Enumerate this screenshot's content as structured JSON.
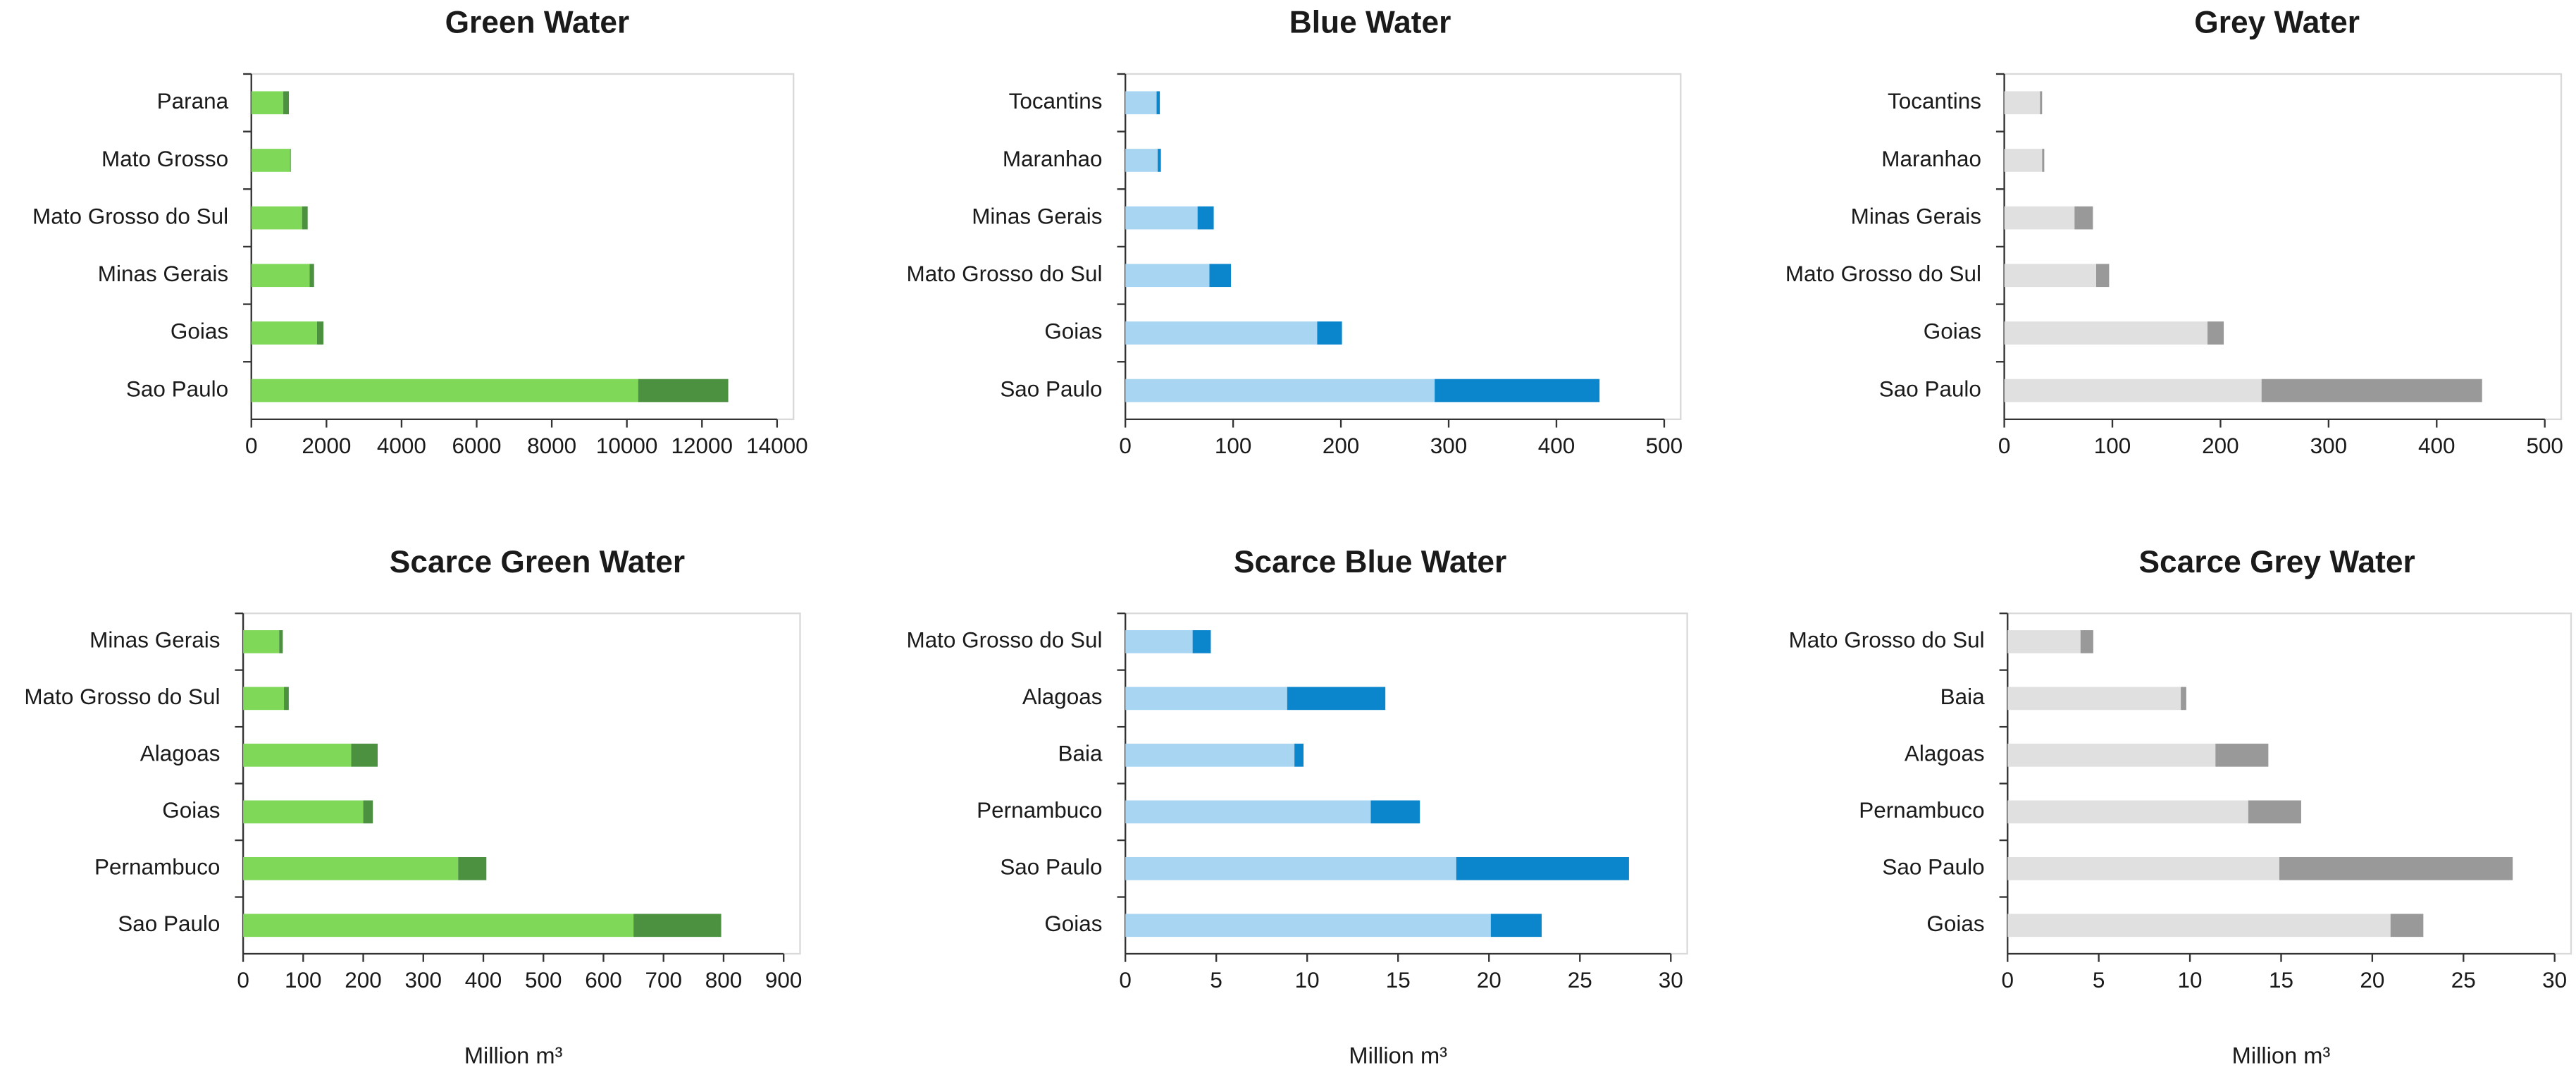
{
  "chart_data": [
    {
      "type": "bar",
      "horizontal": true,
      "title": "Green Water",
      "categories": [
        "Parana",
        "Mato Grosso",
        "Mato Grosso do Sul",
        "Minas Gerais",
        "Goias",
        "Sao Paulo"
      ],
      "series": [
        {
          "color": "#7fd858",
          "values": [
            850,
            1030,
            1350,
            1550,
            1750,
            10300
          ]
        },
        {
          "color": "#4b9140",
          "values": [
            150,
            20,
            150,
            120,
            170,
            2400
          ]
        }
      ],
      "xlim": [
        0,
        14000
      ],
      "xticks": [
        0,
        2000,
        4000,
        6000,
        8000,
        10000,
        12000,
        14000
      ]
    },
    {
      "type": "bar",
      "horizontal": true,
      "title": "Blue Water",
      "categories": [
        "Tocantins",
        "Maranhao",
        "Minas Gerais",
        "Mato Grosso do Sul",
        "Goias",
        "Sao Paulo"
      ],
      "series": [
        {
          "color": "#a8d5f2",
          "values": [
            29,
            30,
            67,
            78,
            178,
            287
          ]
        },
        {
          "color": "#0b86cc",
          "values": [
            3,
            3,
            15,
            20,
            23,
            153
          ]
        }
      ],
      "xlim": [
        0,
        500
      ],
      "xticks": [
        0,
        100,
        200,
        300,
        400,
        500
      ]
    },
    {
      "type": "bar",
      "horizontal": true,
      "title": "Grey Water",
      "categories": [
        "Tocantins",
        "Maranhao",
        "Minas Gerais",
        "Mato Grosso do Sul",
        "Goias",
        "Sao Paulo"
      ],
      "series": [
        {
          "color": "#e0e0e0",
          "values": [
            33,
            35,
            65,
            85,
            188,
            238
          ]
        },
        {
          "color": "#999999",
          "values": [
            2,
            2,
            17,
            12,
            15,
            204
          ]
        }
      ],
      "xlim": [
        0,
        500
      ],
      "xticks": [
        0,
        100,
        200,
        300,
        400,
        500
      ]
    },
    {
      "type": "bar",
      "horizontal": true,
      "title": "Scarce Green Water",
      "categories": [
        "Minas Gerais",
        "Mato Grosso do Sul",
        "Alagoas",
        "Goias",
        "Pernambuco",
        "Sao Paulo"
      ],
      "series": [
        {
          "color": "#7fd858",
          "values": [
            60,
            68,
            180,
            200,
            358,
            650
          ]
        },
        {
          "color": "#4b9140",
          "values": [
            6,
            8,
            44,
            16,
            47,
            146
          ]
        }
      ],
      "xlim": [
        0,
        900
      ],
      "xticks": [
        0,
        100,
        200,
        300,
        400,
        500,
        600,
        700,
        800,
        900
      ],
      "xlabel": "Million m³"
    },
    {
      "type": "bar",
      "horizontal": true,
      "title": "Scarce Blue Water",
      "categories": [
        "Mato Grosso do Sul",
        "Alagoas",
        "Baia",
        "Pernambuco",
        "Sao Paulo",
        "Goias"
      ],
      "series": [
        {
          "color": "#a8d5f2",
          "values": [
            3.7,
            8.9,
            9.3,
            13.5,
            18.2,
            20.1
          ]
        },
        {
          "color": "#0b86cc",
          "values": [
            1.0,
            5.4,
            0.5,
            2.7,
            9.5,
            2.8
          ]
        }
      ],
      "xlim": [
        0,
        30
      ],
      "xticks": [
        0,
        5,
        10,
        15,
        20,
        25,
        30
      ],
      "xlabel": "Million m³"
    },
    {
      "type": "bar",
      "horizontal": true,
      "title": "Scarce Grey Water",
      "categories": [
        "Mato Grosso do Sul",
        "Baia",
        "Alagoas",
        "Pernambuco",
        "Sao Paulo",
        "Goias"
      ],
      "series": [
        {
          "color": "#e0e0e0",
          "values": [
            4.0,
            9.5,
            11.4,
            13.2,
            14.9,
            21.0
          ]
        },
        {
          "color": "#999999",
          "values": [
            0.7,
            0.3,
            2.9,
            2.9,
            12.8,
            1.8
          ]
        }
      ],
      "xlim": [
        0,
        30
      ],
      "xticks": [
        0,
        5,
        10,
        15,
        20,
        25,
        30
      ],
      "xlabel": "Million m³"
    }
  ]
}
